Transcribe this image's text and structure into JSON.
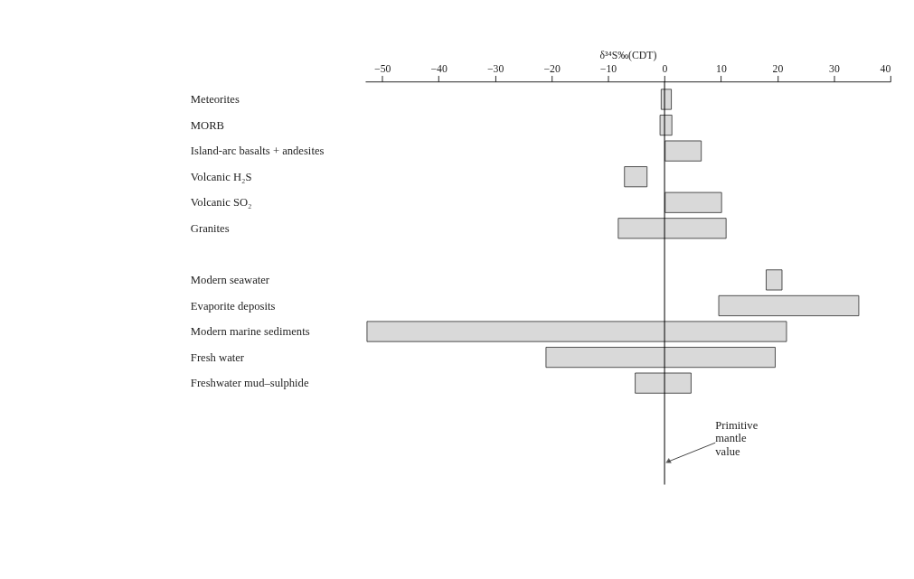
{
  "chart_data": {
    "type": "bar",
    "orientation": "horizontal",
    "xlabel": "δ³⁴S‰(CDT)",
    "categories": [
      "Meteorites",
      "MORB",
      "Island-arc basalts + andesites",
      "Volcanic H₂S",
      "Volcanic SO₂",
      "Granites",
      null,
      "Modern seawater",
      "Evaporite deposits",
      "Modern marine sediments",
      "Fresh water",
      "Freshwater mud–sulphide"
    ],
    "base": [
      -0.6,
      -0.8,
      0.1,
      -7.1,
      0.1,
      -8.2,
      null,
      18,
      9.6,
      -52.7,
      -21,
      -5.2
    ],
    "values": [
      1.8,
      2.1,
      6.4,
      4,
      10,
      19.1,
      null,
      2.8,
      24.8,
      74.3,
      40.6,
      9.9
    ],
    "color": "#d9d9d9",
    "xlim": [
      -53,
      40
    ],
    "xticks": [
      -50,
      -40,
      -30,
      -20,
      -10,
      0,
      10,
      20,
      30,
      40
    ],
    "ref_lines": [
      {
        "axis": "x",
        "value": 0,
        "color": "#000000"
      }
    ],
    "annotations": [
      "Primitive mantle value"
    ],
    "grid": false
  }
}
